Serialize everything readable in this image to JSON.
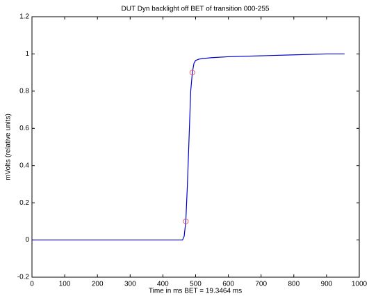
{
  "chart_data": {
    "type": "line",
    "title": "DUT Dyn backlight off BET of transition 000-255",
    "x_label": "Time in ms BET = 19.3464 ms",
    "y_label": "mVolts (relative units)",
    "xlim": [
      0,
      1000
    ],
    "xticks": [
      0,
      100,
      200,
      300,
      400,
      500,
      600,
      700,
      800,
      900,
      1000
    ],
    "ylim": [
      -0.2,
      1.2
    ],
    "yticks": [
      -0.2,
      0,
      0.2,
      0.4,
      0.6,
      0.8,
      1,
      1.2
    ],
    "grid": false,
    "series": [
      {
        "color": "#0000cc",
        "marker": "none",
        "x": [
          0,
          460,
          465,
          470,
          475,
          480,
          485,
          490,
          495,
          500,
          510,
          520,
          550,
          600,
          700,
          800,
          900,
          955
        ],
        "values": [
          0,
          0,
          0.02,
          0.1,
          0.3,
          0.55,
          0.8,
          0.9,
          0.95,
          0.965,
          0.972,
          0.975,
          0.98,
          0.985,
          0.99,
          0.995,
          1.0,
          1.0
        ]
      },
      {
        "color": "#e06060",
        "marker": "circle",
        "x": [
          470,
          490
        ],
        "values": [
          0.1,
          0.9
        ]
      }
    ]
  }
}
